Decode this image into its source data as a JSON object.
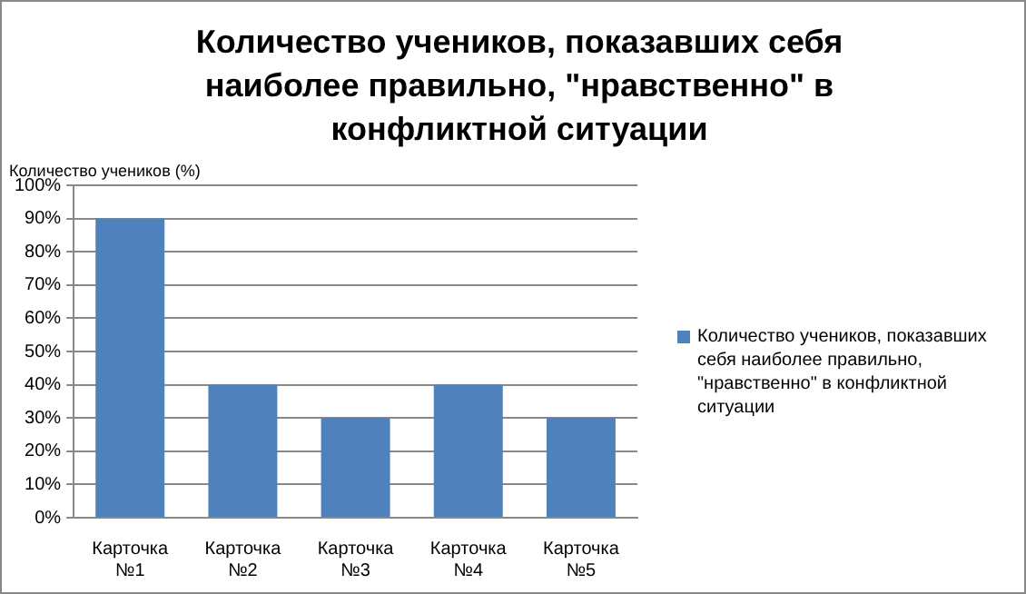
{
  "chart_data": {
    "type": "bar",
    "title": "Количество учеников, показавших себя наиболее правильно, \"нравственно\" в конфликтной ситуации",
    "ylabel": "Количество учеников (%)",
    "categories": [
      "Карточка №1",
      "Карточка №2",
      "Карточка №3",
      "Карточка №4",
      "Карточка №5"
    ],
    "series": [
      {
        "name": "Количество учеников, показавших себя наиболее правильно, \"нравственно\" в конфликтной ситуации",
        "color": "#4f81bd",
        "values": [
          90,
          40,
          30,
          40,
          30
        ]
      }
    ],
    "ylim": [
      0,
      100
    ],
    "yticks": [
      {
        "value": 0,
        "label": "0%"
      },
      {
        "value": 10,
        "label": "10%"
      },
      {
        "value": 20,
        "label": "20%"
      },
      {
        "value": 30,
        "label": "30%"
      },
      {
        "value": 40,
        "label": "40%"
      },
      {
        "value": 50,
        "label": "50%"
      },
      {
        "value": 60,
        "label": "60%"
      },
      {
        "value": 70,
        "label": "70%"
      },
      {
        "value": 80,
        "label": "80%"
      },
      {
        "value": 90,
        "label": "90%"
      },
      {
        "value": 100,
        "label": "100%"
      }
    ],
    "grid": "y",
    "legend": "right"
  }
}
